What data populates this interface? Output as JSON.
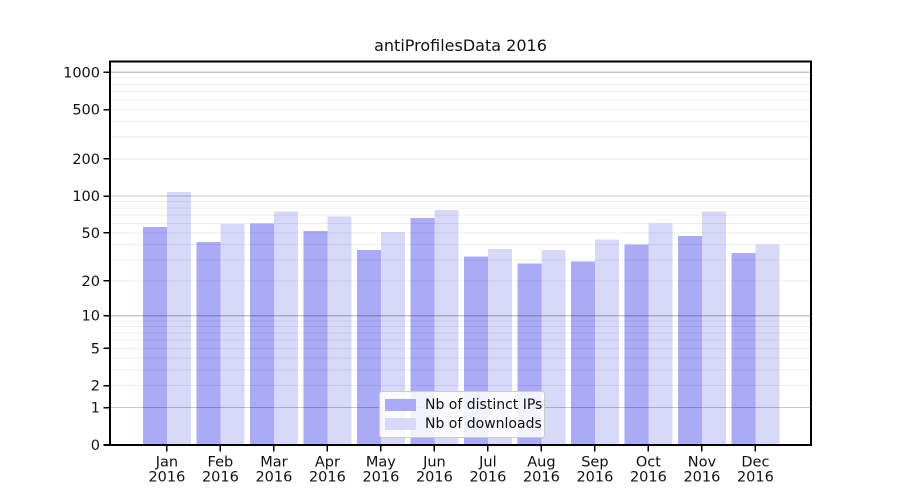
{
  "title": "antiProfilesData 2016",
  "colors": {
    "distinct_ips": "#aaaaf6",
    "downloads": "#d8d8f8",
    "grid_major": "rgba(0,0,0,0.215)",
    "grid_minor": "rgba(0,0,0,0.072)",
    "axis": "#000000",
    "text": "#111111",
    "legend_border": "#cccccc",
    "legend_bg": "rgba(255,255,255,0.85)"
  },
  "legend": {
    "items": [
      {
        "label": "Nb of distinct IPs",
        "color_key": "distinct_ips"
      },
      {
        "label": "Nb of downloads",
        "color_key": "downloads"
      }
    ]
  },
  "chart_data": {
    "type": "bar",
    "title": "antiProfilesData 2016",
    "categories": [
      "Jan",
      "Feb",
      "Mar",
      "Apr",
      "May",
      "Jun",
      "Jul",
      "Aug",
      "Sep",
      "Oct",
      "Nov",
      "Dec"
    ],
    "category_year": "2016",
    "series": [
      {
        "name": "Nb of distinct IPs",
        "color_key": "distinct_ips",
        "values": [
          56,
          42,
          60,
          52,
          36,
          66,
          32,
          28,
          29,
          40,
          47,
          34
        ]
      },
      {
        "name": "Nb of downloads",
        "color_key": "downloads",
        "values": [
          108,
          59,
          75,
          68,
          51,
          77,
          37,
          36,
          44,
          60,
          75,
          40
        ]
      }
    ],
    "xlabel": "",
    "ylabel": "",
    "y_scale": "log10(1+v)",
    "y_tick_values": [
      0,
      1,
      2,
      5,
      10,
      20,
      50,
      100,
      200,
      500,
      1000
    ],
    "ylim": [
      0,
      1240
    ],
    "grid": true,
    "legend_position": "inside lower center"
  }
}
